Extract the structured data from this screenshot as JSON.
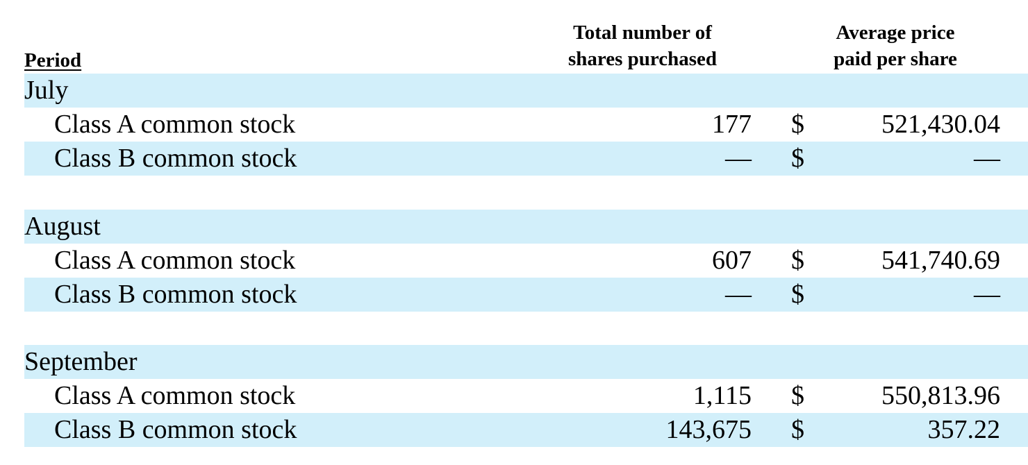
{
  "header": {
    "period_label": "Period",
    "shares_label_line1": "Total number of",
    "shares_label_line2": "shares purchased",
    "price_label_line1": "Average price",
    "price_label_line2": "paid per share"
  },
  "colors": {
    "row_shading": "#d2effa"
  },
  "periods": [
    {
      "name": "July",
      "rows": [
        {
          "label": "Class A common stock",
          "shares": "177",
          "currency": "$",
          "price": "521,430.04"
        },
        {
          "label": "Class B common stock",
          "shares": "—",
          "currency": "$",
          "price": "—"
        }
      ]
    },
    {
      "name": "August",
      "rows": [
        {
          "label": "Class A common stock",
          "shares": "607",
          "currency": "$",
          "price": "541,740.69"
        },
        {
          "label": "Class B common stock",
          "shares": "—",
          "currency": "$",
          "price": "—"
        }
      ]
    },
    {
      "name": "September",
      "rows": [
        {
          "label": "Class A common stock",
          "shares": "1,115",
          "currency": "$",
          "price": "550,813.96"
        },
        {
          "label": "Class B common stock",
          "shares": "143,675",
          "currency": "$",
          "price": "357.22"
        }
      ]
    }
  ]
}
